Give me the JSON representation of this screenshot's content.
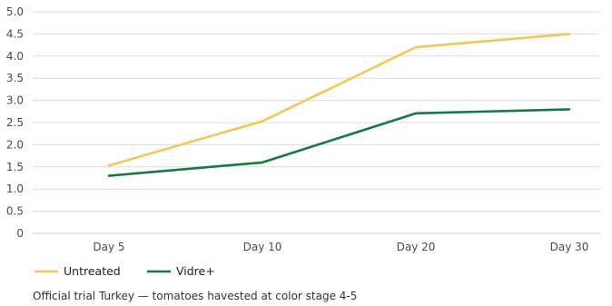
{
  "chart_data": {
    "type": "line",
    "categories": [
      "Day 5",
      "Day 10",
      "Day 20",
      "Day 30"
    ],
    "series": [
      {
        "name": "Untreated",
        "values": [
          1.53,
          2.53,
          4.2,
          4.5
        ],
        "color": "#f5c655"
      },
      {
        "name": "Vidre+",
        "values": [
          1.3,
          1.6,
          2.71,
          2.8
        ],
        "color": "#157a3c"
      }
    ],
    "ylim": [
      0,
      5
    ],
    "yticks": [
      "0",
      "0.5",
      "1.0",
      "1.5",
      "2.0",
      "2.5",
      "3.0",
      "3.5",
      "4.0",
      "4.5",
      "5.0"
    ],
    "grid": true,
    "legend_position": "bottom-left",
    "colors": {
      "grid": "#dcdcdc",
      "axis": "#c8c8c8"
    }
  },
  "note": "Official trial Turkey — tomatoes havested at color stage 4-5"
}
